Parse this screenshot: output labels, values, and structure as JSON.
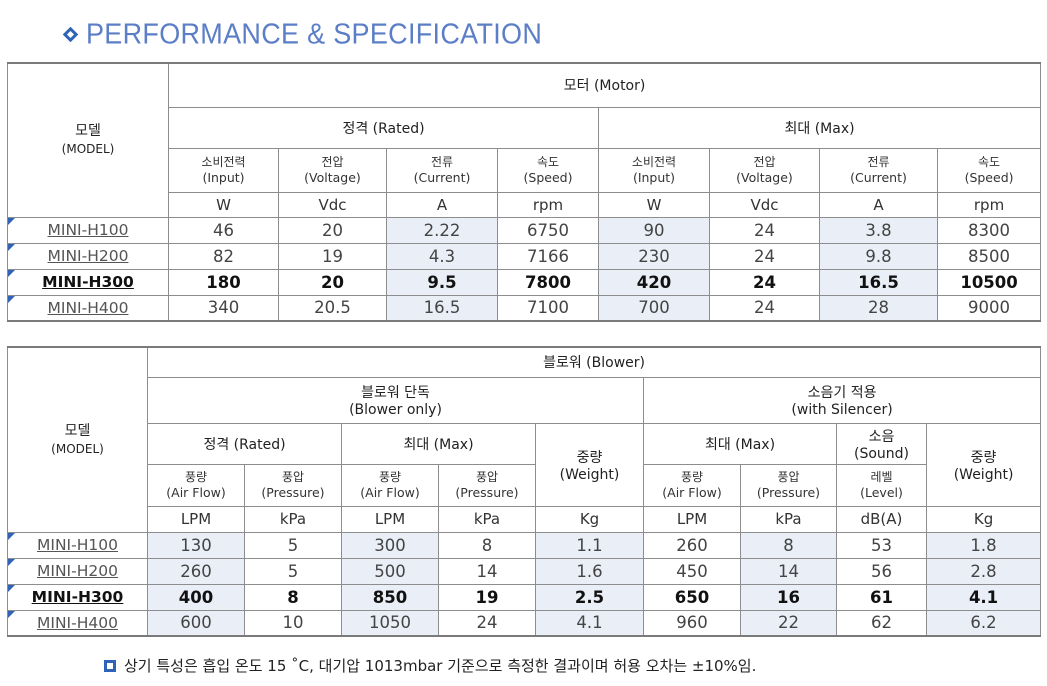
{
  "page_title": "PERFORMANCE & SPECIFICATION",
  "motor_table": {
    "model_header": {
      "ko": "모델",
      "en": "(MODEL)"
    },
    "group_title": "모터 (Motor)",
    "rated_title": "정격 (Rated)",
    "max_title": "최대 (Max)",
    "columns": [
      {
        "ko": "소비전력",
        "en": "(Input)",
        "unit": "W"
      },
      {
        "ko": "전압",
        "en": "(Voltage)",
        "unit": "Vdc"
      },
      {
        "ko": "전류",
        "en": "(Current)",
        "unit": "A"
      },
      {
        "ko": "속도",
        "en": "(Speed)",
        "unit": "rpm"
      },
      {
        "ko": "소비전력",
        "en": "(Input)",
        "unit": "W"
      },
      {
        "ko": "전압",
        "en": "(Voltage)",
        "unit": "Vdc"
      },
      {
        "ko": "전류",
        "en": "(Current)",
        "unit": "A"
      },
      {
        "ko": "속도",
        "en": "(Speed)",
        "unit": "rpm"
      }
    ],
    "rows": [
      {
        "model": "MINI-H100",
        "values": [
          "46",
          "20",
          "2.22",
          "6750",
          "90",
          "24",
          "3.8",
          "8300"
        ]
      },
      {
        "model": "MINI-H200",
        "values": [
          "82",
          "19",
          "4.3",
          "7166",
          "230",
          "24",
          "9.8",
          "8500"
        ]
      },
      {
        "model": "MINI-H300",
        "values": [
          "180",
          "20",
          "9.5",
          "7800",
          "420",
          "24",
          "16.5",
          "10500"
        ]
      },
      {
        "model": "MINI-H400",
        "values": [
          "340",
          "20.5",
          "16.5",
          "7100",
          "700",
          "24",
          "28",
          "9000"
        ]
      }
    ]
  },
  "blower_table": {
    "model_header": {
      "ko": "모델",
      "en": "(MODEL)"
    },
    "group_title": "블로워 (Blower)",
    "blower_only": {
      "ko": "블로워 단독",
      "en": "(Blower only)"
    },
    "with_silencer": {
      "ko": "소음기 적용",
      "en": "(with Silencer)"
    },
    "rated_title": "정격 (Rated)",
    "max_title": "최대 (Max)",
    "max_title_2": "최대 (Max)",
    "weight": {
      "ko": "중량",
      "en": "(Weight)",
      "unit": "Kg"
    },
    "sound": {
      "ko": "소음",
      "en": "(Sound)"
    },
    "columns": [
      {
        "ko": "풍량",
        "en": "(Air Flow)",
        "unit": "LPM"
      },
      {
        "ko": "풍압",
        "en": "(Pressure)",
        "unit": "kPa"
      },
      {
        "ko": "풍량",
        "en": "(Air Flow)",
        "unit": "LPM"
      },
      {
        "ko": "풍압",
        "en": "(Pressure)",
        "unit": "kPa"
      },
      {
        "ko": "풍량",
        "en": "(Air Flow)",
        "unit": "LPM"
      },
      {
        "ko": "풍압",
        "en": "(Pressure)",
        "unit": "kPa"
      },
      {
        "ko": "레벨",
        "en": "(Level)",
        "unit": "dB(A)"
      }
    ],
    "rows": [
      {
        "model": "MINI-H100",
        "values": [
          "130",
          "5",
          "300",
          "8",
          "1.1",
          "260",
          "8",
          "53",
          "1.8"
        ]
      },
      {
        "model": "MINI-H200",
        "values": [
          "260",
          "5",
          "500",
          "14",
          "1.6",
          "450",
          "14",
          "56",
          "2.8"
        ]
      },
      {
        "model": "MINI-H300",
        "values": [
          "400",
          "8",
          "850",
          "19",
          "2.5",
          "650",
          "16",
          "61",
          "4.1"
        ]
      },
      {
        "model": "MINI-H400",
        "values": [
          "600",
          "10",
          "1050",
          "24",
          "4.1",
          "960",
          "22",
          "62",
          "6.2"
        ]
      }
    ]
  },
  "footnote": "상기 특성은 흡입 온도 15 ˚C,  대기압 1013mbar 기준으로 측정한 결과이며 허용 오차는 ±10%임.",
  "colors": {
    "accent": "#2f63b7",
    "title": "#5b7ec7",
    "shade": "#e9eef7"
  }
}
